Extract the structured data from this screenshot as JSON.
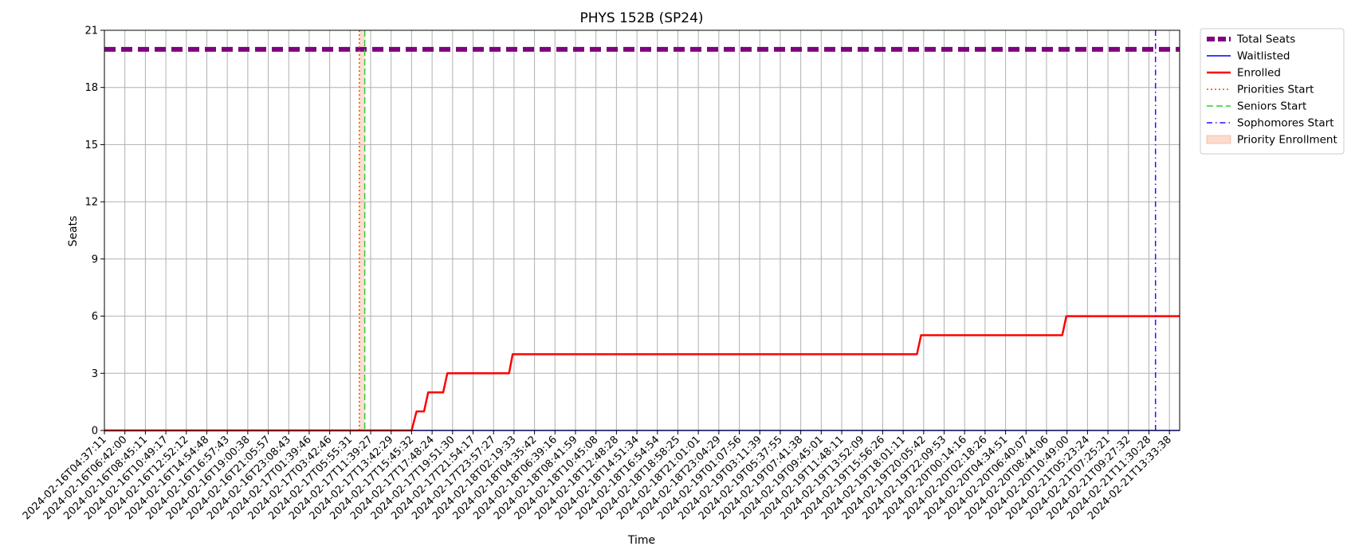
{
  "chart_data": {
    "type": "line",
    "title": "PHYS 152B (SP24)",
    "xlabel": "Time",
    "ylabel": "Seats",
    "ylim": [
      0,
      21
    ],
    "yticks": [
      0,
      3,
      6,
      9,
      12,
      15,
      18,
      21
    ],
    "xlim": [
      "2024-02-16T04:37:11",
      "2024-02-21T13:50:00"
    ],
    "grid": true,
    "legend_position": "outside-top-right",
    "x_tick_labels": [
      "2024-02-16T04:37:11",
      "2024-02-16T06:42:00",
      "2024-02-16T08:45:11",
      "2024-02-16T10:49:17",
      "2024-02-16T12:52:12",
      "2024-02-16T14:54:48",
      "2024-02-16T16:57:43",
      "2024-02-16T19:00:38",
      "2024-02-16T21:05:57",
      "2024-02-16T23:08:43",
      "2024-02-17T01:39:46",
      "2024-02-17T03:42:46",
      "2024-02-17T05:55:31",
      "2024-02-17T11:39:27",
      "2024-02-17T13:42:29",
      "2024-02-17T15:45:32",
      "2024-02-17T17:48:24",
      "2024-02-17T19:51:30",
      "2024-02-17T21:54:17",
      "2024-02-17T23:57:27",
      "2024-02-18T02:19:33",
      "2024-02-18T04:35:42",
      "2024-02-18T06:39:16",
      "2024-02-18T08:41:59",
      "2024-02-18T10:45:08",
      "2024-02-18T12:48:28",
      "2024-02-18T14:51:34",
      "2024-02-18T16:54:54",
      "2024-02-18T18:58:25",
      "2024-02-18T21:01:01",
      "2024-02-18T23:04:29",
      "2024-02-19T01:07:56",
      "2024-02-19T03:11:39",
      "2024-02-19T05:37:55",
      "2024-02-19T07:41:38",
      "2024-02-19T09:45:01",
      "2024-02-19T11:48:11",
      "2024-02-19T13:52:09",
      "2024-02-19T15:56:26",
      "2024-02-19T18:01:11",
      "2024-02-19T20:05:42",
      "2024-02-19T22:09:53",
      "2024-02-20T00:14:16",
      "2024-02-20T02:18:26",
      "2024-02-20T04:34:51",
      "2024-02-20T06:40:07",
      "2024-02-20T08:44:06",
      "2024-02-20T10:49:00",
      "2024-02-21T05:23:24",
      "2024-02-21T07:25:21",
      "2024-02-21T09:27:32",
      "2024-02-21T11:30:28",
      "2024-02-21T13:33:38"
    ],
    "series": [
      {
        "name": "Total Seats",
        "style": "dashed-thick",
        "color": "#800080",
        "points": [
          {
            "x": "2024-02-16T04:37:11",
            "y": 20
          },
          {
            "x": "2024-02-21T13:50:00",
            "y": 20
          }
        ]
      },
      {
        "name": "Waitlisted",
        "style": "solid",
        "color": "#0000ff",
        "points": [
          {
            "x": "2024-02-16T04:37:11",
            "y": 0
          },
          {
            "x": "2024-02-21T13:50:00",
            "y": 0
          }
        ]
      },
      {
        "name": "Enrolled",
        "style": "solid-thick",
        "color": "#ff0000",
        "points": [
          {
            "x": "2024-02-16T04:37:11",
            "y": 0
          },
          {
            "x": "2024-02-17T15:45:32",
            "y": 0
          },
          {
            "x": "2024-02-17T16:15:00",
            "y": 1
          },
          {
            "x": "2024-02-17T17:00:00",
            "y": 1
          },
          {
            "x": "2024-02-17T17:25:00",
            "y": 2
          },
          {
            "x": "2024-02-17T18:55:00",
            "y": 2
          },
          {
            "x": "2024-02-17T19:20:00",
            "y": 3
          },
          {
            "x": "2024-02-18T01:45:00",
            "y": 3
          },
          {
            "x": "2024-02-18T02:10:00",
            "y": 4
          },
          {
            "x": "2024-02-19T19:25:00",
            "y": 4
          },
          {
            "x": "2024-02-19T19:50:00",
            "y": 5
          },
          {
            "x": "2024-02-20T10:20:00",
            "y": 5
          },
          {
            "x": "2024-02-20T10:45:00",
            "y": 6
          },
          {
            "x": "2024-02-21T13:50:00",
            "y": 6
          }
        ]
      }
    ],
    "vertical_lines": [
      {
        "name": "Priorities Start",
        "x": "2024-02-17T08:30:00",
        "style": "dotted",
        "color": "#ff4500"
      },
      {
        "name": "Seniors Start",
        "x": "2024-02-17T10:00:00",
        "style": "dashed",
        "color": "#32cd32"
      },
      {
        "name": "Sophomores Start",
        "x": "2024-02-21T12:10:00",
        "style": "dashdot",
        "color": "#3f00ff"
      }
    ],
    "shaded_regions": [
      {
        "name": "Priority Enrollment",
        "x_start": "2024-02-17T08:30:00",
        "x_end": "2024-02-17T10:00:00",
        "color": "#f4a582"
      }
    ],
    "legend": [
      {
        "label": "Total Seats",
        "kind": "line",
        "color": "#800080",
        "style": "dashed-thick"
      },
      {
        "label": "Waitlisted",
        "kind": "line",
        "color": "#0000ff",
        "style": "solid"
      },
      {
        "label": "Enrolled",
        "kind": "line",
        "color": "#ff0000",
        "style": "solid-thick"
      },
      {
        "label": "Priorities Start",
        "kind": "line",
        "color": "#ff4500",
        "style": "dotted"
      },
      {
        "label": "Seniors Start",
        "kind": "line",
        "color": "#32cd32",
        "style": "dashed"
      },
      {
        "label": "Sophomores Start",
        "kind": "line",
        "color": "#3f00ff",
        "style": "dashdot"
      },
      {
        "label": "Priority Enrollment",
        "kind": "patch",
        "color": "#f4a582"
      }
    ]
  }
}
